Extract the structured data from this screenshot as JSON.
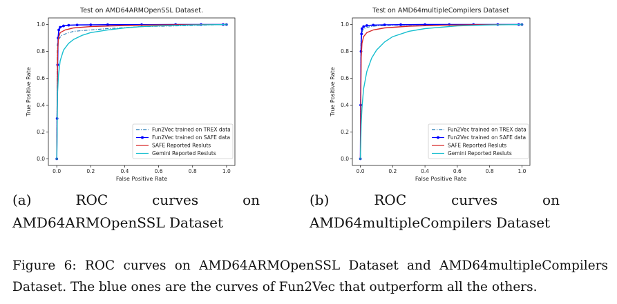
{
  "colors": {
    "trex": "#1f77b4",
    "safe_data": "#0000ff",
    "safe_reported": "#d62728",
    "gemini": "#17becf"
  },
  "chart_data": [
    {
      "type": "line",
      "title": "Test on AMD64ARMOpenSSL Dataset.",
      "xlabel": "False Positive Rate",
      "ylabel": "True Positive Rate",
      "xlim": [
        0.0,
        1.0
      ],
      "ylim": [
        0.0,
        1.0
      ],
      "xticks": [
        "0.0",
        "0.2",
        "0.4",
        "0.6",
        "0.8",
        "1.0"
      ],
      "yticks": [
        "0.0",
        "0.2",
        "0.4",
        "0.6",
        "0.8",
        "1.0"
      ],
      "grid": false,
      "legend_position": "lower-right",
      "series": [
        {
          "name": "Fun2Vec trained on TREX data",
          "style": "dash-dot",
          "x": [
            0,
            0.003,
            0.01,
            0.03,
            0.06,
            0.1,
            0.2,
            0.3,
            0.5,
            0.7,
            0.85,
            1.0
          ],
          "y": [
            0,
            0.85,
            0.89,
            0.92,
            0.935,
            0.95,
            0.96,
            0.97,
            0.985,
            0.99,
            0.995,
            1.0
          ]
        },
        {
          "name": "Fun2Vec trained on SAFE data",
          "style": "solid-marker",
          "x": [
            0,
            0.002,
            0.005,
            0.008,
            0.012,
            0.02,
            0.04,
            0.07,
            0.12,
            0.2,
            0.3,
            0.5,
            0.7,
            0.85,
            0.98,
            1.0
          ],
          "y": [
            0,
            0.3,
            0.7,
            0.9,
            0.96,
            0.98,
            0.99,
            0.995,
            0.997,
            0.998,
            0.999,
            0.999,
            1.0,
            1.0,
            1.0,
            1.0
          ]
        },
        {
          "name": "SAFE Reported Resluts",
          "style": "solid",
          "x": [
            0,
            0.005,
            0.01,
            0.02,
            0.05,
            0.1,
            0.2,
            0.4,
            0.6,
            0.8,
            1.0
          ],
          "y": [
            0,
            0.8,
            0.9,
            0.94,
            0.96,
            0.975,
            0.985,
            0.993,
            0.997,
            0.999,
            1.0
          ]
        },
        {
          "name": "Gemini Reported Resluts",
          "style": "solid",
          "x": [
            0,
            0.005,
            0.01,
            0.02,
            0.04,
            0.07,
            0.1,
            0.15,
            0.2,
            0.3,
            0.4,
            0.5,
            0.6,
            0.8,
            1.0
          ],
          "y": [
            0,
            0.5,
            0.62,
            0.73,
            0.81,
            0.86,
            0.89,
            0.92,
            0.94,
            0.96,
            0.975,
            0.985,
            0.99,
            0.997,
            1.0
          ]
        }
      ]
    },
    {
      "type": "line",
      "title": "Test on AMD64multipleCompilers Dataset",
      "xlabel": "False Positive Rate",
      "ylabel": "True Positive Rate",
      "xlim": [
        0.0,
        1.0
      ],
      "ylim": [
        0.0,
        1.0
      ],
      "xticks": [
        "0.0",
        "0.2",
        "0.4",
        "0.6",
        "0.8",
        "1.0"
      ],
      "yticks": [
        "0.0",
        "0.2",
        "0.4",
        "0.6",
        "0.8",
        "1.0"
      ],
      "grid": false,
      "legend_position": "lower-right",
      "series": [
        {
          "name": "Fun2Vec trained on TREX data",
          "style": "dash-dot",
          "x": [
            0,
            0.003,
            0.008,
            0.015,
            0.03,
            0.06,
            0.1,
            0.2,
            0.4,
            0.7,
            1.0
          ],
          "y": [
            0,
            0.88,
            0.93,
            0.96,
            0.975,
            0.985,
            0.99,
            0.995,
            0.998,
            1.0,
            1.0
          ]
        },
        {
          "name": "Fun2Vec trained on SAFE data",
          "style": "solid-marker",
          "x": [
            0,
            0.002,
            0.004,
            0.007,
            0.01,
            0.02,
            0.04,
            0.08,
            0.15,
            0.25,
            0.4,
            0.55,
            0.7,
            0.85,
            0.98,
            1.0
          ],
          "y": [
            0,
            0.4,
            0.8,
            0.93,
            0.97,
            0.985,
            0.993,
            0.996,
            0.998,
            0.999,
            1.0,
            1.0,
            1.0,
            1.0,
            1.0,
            1.0
          ]
        },
        {
          "name": "SAFE Reported Resluts",
          "style": "solid",
          "x": [
            0,
            0.005,
            0.01,
            0.02,
            0.04,
            0.08,
            0.15,
            0.3,
            0.5,
            0.7,
            1.0
          ],
          "y": [
            0,
            0.75,
            0.86,
            0.91,
            0.94,
            0.96,
            0.975,
            0.988,
            0.995,
            0.998,
            1.0
          ]
        },
        {
          "name": "Gemini Reported Resluts",
          "style": "solid",
          "x": [
            0,
            0.005,
            0.01,
            0.02,
            0.04,
            0.07,
            0.1,
            0.15,
            0.2,
            0.3,
            0.4,
            0.5,
            0.6,
            0.8,
            1.0
          ],
          "y": [
            0,
            0.25,
            0.38,
            0.52,
            0.65,
            0.75,
            0.81,
            0.87,
            0.91,
            0.95,
            0.97,
            0.98,
            0.99,
            0.997,
            1.0
          ]
        }
      ]
    }
  ],
  "captions": {
    "a": {
      "label": "(a)",
      "words": [
        "ROC",
        "curves",
        "on"
      ],
      "line2": "AMD64ARMOpenSSL Dataset"
    },
    "b": {
      "label": "(b)",
      "words": [
        "ROC",
        "curves",
        "on"
      ],
      "line2": "AMD64multipleCompilers Dataset"
    },
    "figure": "Figure 6:  ROC curves on AMD64ARMOpenSSL Dataset and AMD64multipleCompilers Dataset. The blue ones are the curves of Fun2Vec that outperform all the others."
  }
}
